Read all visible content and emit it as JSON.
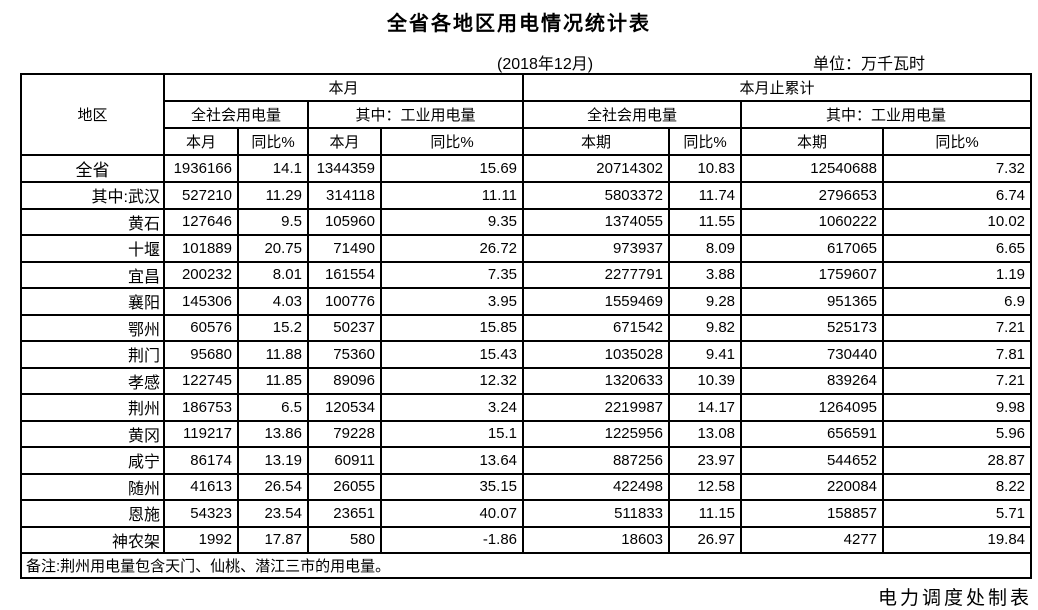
{
  "title": "全省各地区用电情况统计表",
  "period": "(2018年12月)",
  "unit_label": "单位：万千瓦时",
  "credit": "电力调度处制表",
  "table": {
    "col_region": "地区",
    "group_month": "本月",
    "group_cumulative": "本月止累计",
    "sub_total": "全社会用电量",
    "sub_industry": "其中：工业用电量",
    "leaf_month": "本月",
    "leaf_period": "本期",
    "leaf_yoy": "同比%",
    "note": "备注:荆州用电量包含天门、仙桃、潜江三市的用电量。",
    "rows": [
      {
        "region": "全省",
        "values": [
          "1936166",
          "14.1",
          "1344359",
          "15.69",
          "20714302",
          "10.83",
          "12540688",
          "7.32"
        ]
      },
      {
        "region": "其中:武汉",
        "values": [
          "527210",
          "11.29",
          "314118",
          "11.11",
          "5803372",
          "11.74",
          "2796653",
          "6.74"
        ]
      },
      {
        "region": "黄石",
        "values": [
          "127646",
          "9.5",
          "105960",
          "9.35",
          "1374055",
          "11.55",
          "1060222",
          "10.02"
        ]
      },
      {
        "region": "十堰",
        "values": [
          "101889",
          "20.75",
          "71490",
          "26.72",
          "973937",
          "8.09",
          "617065",
          "6.65"
        ]
      },
      {
        "region": "宜昌",
        "values": [
          "200232",
          "8.01",
          "161554",
          "7.35",
          "2277791",
          "3.88",
          "1759607",
          "1.19"
        ]
      },
      {
        "region": "襄阳",
        "values": [
          "145306",
          "4.03",
          "100776",
          "3.95",
          "1559469",
          "9.28",
          "951365",
          "6.9"
        ]
      },
      {
        "region": "鄂州",
        "values": [
          "60576",
          "15.2",
          "50237",
          "15.85",
          "671542",
          "9.82",
          "525173",
          "7.21"
        ]
      },
      {
        "region": "荆门",
        "values": [
          "95680",
          "11.88",
          "75360",
          "15.43",
          "1035028",
          "9.41",
          "730440",
          "7.81"
        ]
      },
      {
        "region": "孝感",
        "values": [
          "122745",
          "11.85",
          "89096",
          "12.32",
          "1320633",
          "10.39",
          "839264",
          "7.21"
        ]
      },
      {
        "region": "荆州",
        "values": [
          "186753",
          "6.5",
          "120534",
          "3.24",
          "2219987",
          "14.17",
          "1264095",
          "9.98"
        ]
      },
      {
        "region": "黄冈",
        "values": [
          "119217",
          "13.86",
          "79228",
          "15.1",
          "1225956",
          "13.08",
          "656591",
          "5.96"
        ]
      },
      {
        "region": "咸宁",
        "values": [
          "86174",
          "13.19",
          "60911",
          "13.64",
          "887256",
          "23.97",
          "544652",
          "28.87"
        ]
      },
      {
        "region": "随州",
        "values": [
          "41613",
          "26.54",
          "26055",
          "35.15",
          "422498",
          "12.58",
          "220084",
          "8.22"
        ]
      },
      {
        "region": "恩施",
        "values": [
          "54323",
          "23.54",
          "23651",
          "40.07",
          "511833",
          "11.15",
          "158857",
          "5.71"
        ]
      },
      {
        "region": "神农架",
        "values": [
          "1992",
          "17.87",
          "580",
          "-1.86",
          "18603",
          "26.97",
          "4277",
          "19.84"
        ]
      }
    ]
  }
}
